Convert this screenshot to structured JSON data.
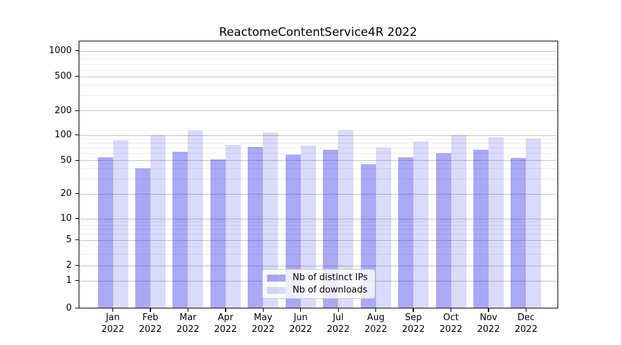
{
  "title": "ReactomeContentService4R 2022",
  "legend": {
    "items": [
      {
        "label": "Nb of distinct IPs",
        "color": "#0a0ae6",
        "alpha": 0.35,
        "rendered_color": "#a9a9f6"
      },
      {
        "label": "Nb of downloads",
        "color": "#0a0ae6",
        "alpha": 0.15,
        "rendered_color": "#dadafb"
      }
    ]
  },
  "chart_data": {
    "type": "bar",
    "title": "ReactomeContentService4R 2022",
    "categories": [
      "Jan",
      "Feb",
      "Mar",
      "Apr",
      "May",
      "Jun",
      "Jul",
      "Aug",
      "Sep",
      "Oct",
      "Nov",
      "Dec"
    ],
    "category_year": "2022",
    "series": [
      {
        "name": "Nb of distinct IPs",
        "color": "#0a0ae6",
        "alpha": 0.35,
        "values": [
          54,
          40,
          63,
          51,
          72,
          58,
          66,
          45,
          54,
          61,
          66,
          53
        ]
      },
      {
        "name": "Nb of downloads",
        "color": "#0a0ae6",
        "alpha": 0.15,
        "values": [
          86,
          100,
          113,
          76,
          108,
          74,
          116,
          70,
          84,
          100,
          94,
          90
        ]
      }
    ],
    "xlabel": "",
    "ylabel": "",
    "yscale": "symlog",
    "y_ticks": [
      0,
      1,
      2,
      5,
      10,
      20,
      50,
      100,
      200,
      500,
      1000
    ],
    "y_minor_ticks": [
      3,
      4,
      6,
      7,
      8,
      9,
      30,
      40,
      60,
      70,
      80,
      90,
      300,
      400,
      600,
      700,
      800,
      900
    ],
    "ylim": [
      0,
      1300
    ],
    "grid": {
      "horizontal_major": true,
      "horizontal_minor": true,
      "vertical": false
    },
    "legend_position": "lower-center"
  }
}
